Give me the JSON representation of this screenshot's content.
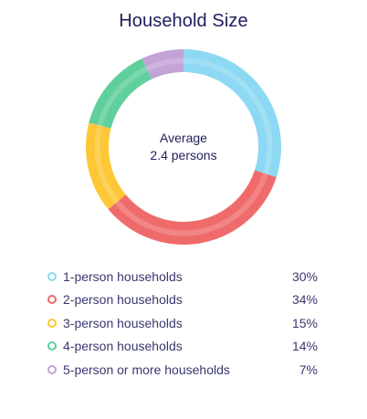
{
  "chart_data": {
    "type": "pie",
    "title": "Household Size",
    "center_label": "Average",
    "center_value": "2.4 persons",
    "categories": [
      "1-person households",
      "2-person households",
      "3-person households",
      "4-person households",
      "5-person or more households"
    ],
    "values": [
      30,
      34,
      15,
      14,
      7
    ],
    "value_labels": [
      "30%",
      "34%",
      "15%",
      "14%",
      "7%"
    ],
    "colors": [
      "#8dd8f2",
      "#ef6b6b",
      "#fdc735",
      "#5fcf9c",
      "#c3a3d6"
    ],
    "legend_position": "bottom"
  }
}
